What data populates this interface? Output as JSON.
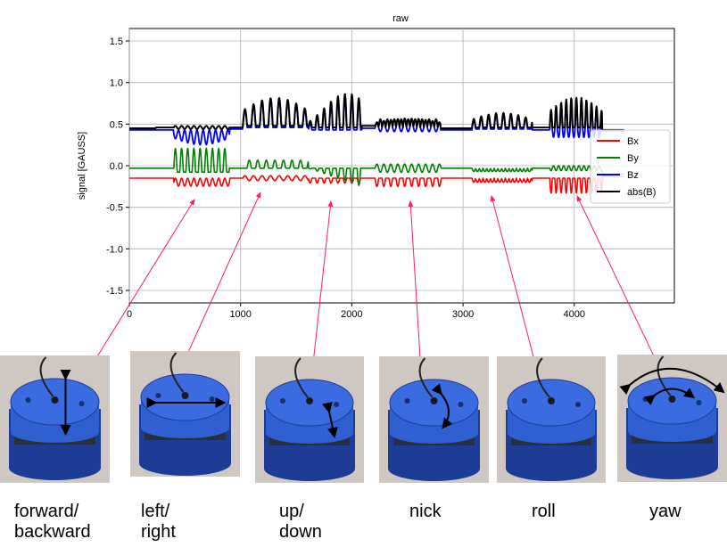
{
  "chart_data": {
    "type": "line",
    "title": "raw",
    "xlabel": "",
    "ylabel": "signal [GAUSS]",
    "xlim": [
      0,
      4900
    ],
    "ylim": [
      -1.65,
      1.65
    ],
    "xticks": [
      0,
      1000,
      2000,
      3000,
      4000
    ],
    "yticks": [
      -1.5,
      -1.0,
      -0.5,
      0.0,
      0.5,
      1.0,
      1.5
    ],
    "grid": true,
    "legend_position": "right",
    "series": [
      {
        "name": "Bx",
        "color": "#ff0000"
      },
      {
        "name": "By",
        "color": "#008000"
      },
      {
        "name": "Bz",
        "color": "#0000ff"
      },
      {
        "name": "abs(B)",
        "color": "#000000"
      }
    ],
    "segments": [
      {
        "start": 400,
        "end": 900,
        "freq": 0.018,
        "amp": 0.09,
        "note": "forward/backward"
      },
      {
        "start": 1020,
        "end": 1610,
        "freq": 0.013,
        "amp": 0.27,
        "note": "left/right"
      },
      {
        "start": 1610,
        "end": 2090,
        "freq": 0.016,
        "amp": 0.42,
        "note": "up/down"
      },
      {
        "start": 2210,
        "end": 2800,
        "freq": 0.016,
        "amp": 0.18,
        "note": "nick"
      },
      {
        "start": 3080,
        "end": 3620,
        "freq": 0.015,
        "amp": 0.16,
        "note": "roll"
      },
      {
        "start": 3780,
        "end": 4250,
        "freq": 0.022,
        "amp": 0.28,
        "note": "yaw"
      }
    ]
  },
  "captions": [
    {
      "line1": "forward/",
      "line2": "backward"
    },
    {
      "line1": "left/",
      "line2": "right"
    },
    {
      "line1": "up/",
      "line2": "down"
    },
    {
      "line1": "nick",
      "line2": ""
    },
    {
      "line1": "roll",
      "line2": ""
    },
    {
      "line1": "yaw",
      "line2": ""
    }
  ],
  "colors": {
    "arrow": "#ff1a75",
    "device_blue": "#2f5fd0",
    "device_blue_dark": "#1c3c96",
    "background_photo": "#cfc8c2"
  }
}
